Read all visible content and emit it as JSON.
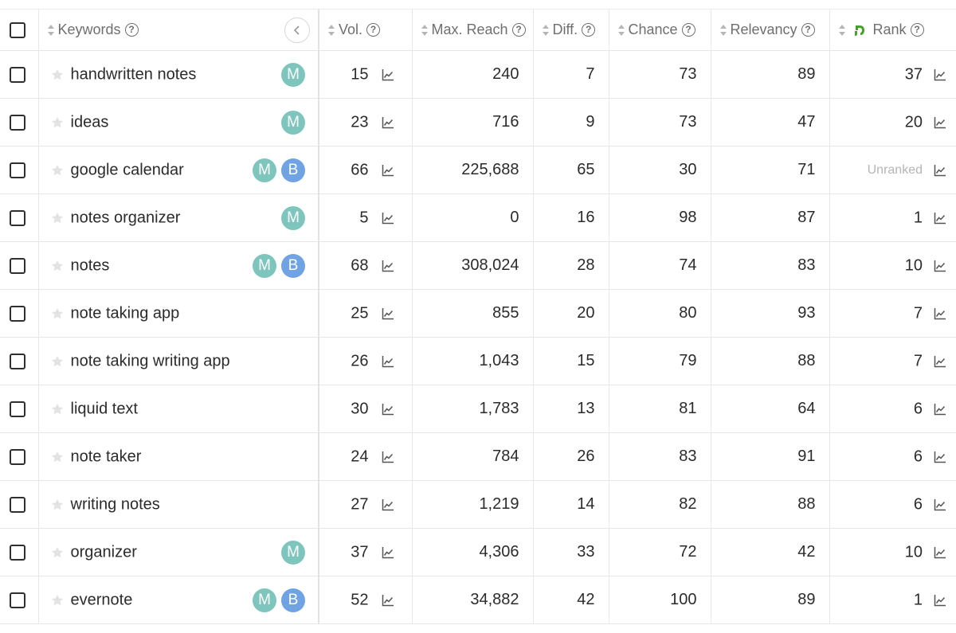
{
  "header": {
    "keywords": "Keywords",
    "vol": "Vol.",
    "max_reach": "Max. Reach",
    "diff": "Diff.",
    "chance": "Chance",
    "relevancy": "Relevancy",
    "rank": "Rank",
    "help_glyph": "?",
    "rank_icon": "evernote-elephant-icon",
    "brand_green": "#4aa02c"
  },
  "rows": [
    {
      "keyword": "handwritten notes",
      "badges": [
        "M"
      ],
      "vol": "15",
      "max_reach": "240",
      "diff": "7",
      "chance": "73",
      "relevancy": "89",
      "rank": "37"
    },
    {
      "keyword": "ideas",
      "badges": [
        "M"
      ],
      "vol": "23",
      "max_reach": "716",
      "diff": "9",
      "chance": "73",
      "relevancy": "47",
      "rank": "20"
    },
    {
      "keyword": "google calendar",
      "badges": [
        "M",
        "B"
      ],
      "vol": "66",
      "max_reach": "225,688",
      "diff": "65",
      "chance": "30",
      "relevancy": "71",
      "rank": "Unranked"
    },
    {
      "keyword": "notes organizer",
      "badges": [
        "M"
      ],
      "vol": "5",
      "max_reach": "0",
      "diff": "16",
      "chance": "98",
      "relevancy": "87",
      "rank": "1"
    },
    {
      "keyword": "notes",
      "badges": [
        "M",
        "B"
      ],
      "vol": "68",
      "max_reach": "308,024",
      "diff": "28",
      "chance": "74",
      "relevancy": "83",
      "rank": "10"
    },
    {
      "keyword": "note taking app",
      "badges": [],
      "vol": "25",
      "max_reach": "855",
      "diff": "20",
      "chance": "80",
      "relevancy": "93",
      "rank": "7"
    },
    {
      "keyword": "note taking writing app",
      "badges": [],
      "vol": "26",
      "max_reach": "1,043",
      "diff": "15",
      "chance": "79",
      "relevancy": "88",
      "rank": "7"
    },
    {
      "keyword": "liquid text",
      "badges": [],
      "vol": "30",
      "max_reach": "1,783",
      "diff": "13",
      "chance": "81",
      "relevancy": "64",
      "rank": "6"
    },
    {
      "keyword": "note taker",
      "badges": [],
      "vol": "24",
      "max_reach": "784",
      "diff": "26",
      "chance": "83",
      "relevancy": "91",
      "rank": "6"
    },
    {
      "keyword": "writing notes",
      "badges": [],
      "vol": "27",
      "max_reach": "1,219",
      "diff": "14",
      "chance": "82",
      "relevancy": "88",
      "rank": "6"
    },
    {
      "keyword": "organizer",
      "badges": [
        "M"
      ],
      "vol": "37",
      "max_reach": "4,306",
      "diff": "33",
      "chance": "72",
      "relevancy": "42",
      "rank": "10"
    },
    {
      "keyword": "evernote",
      "badges": [
        "M",
        "B"
      ],
      "vol": "52",
      "max_reach": "34,882",
      "diff": "42",
      "chance": "100",
      "relevancy": "89",
      "rank": "1"
    }
  ]
}
